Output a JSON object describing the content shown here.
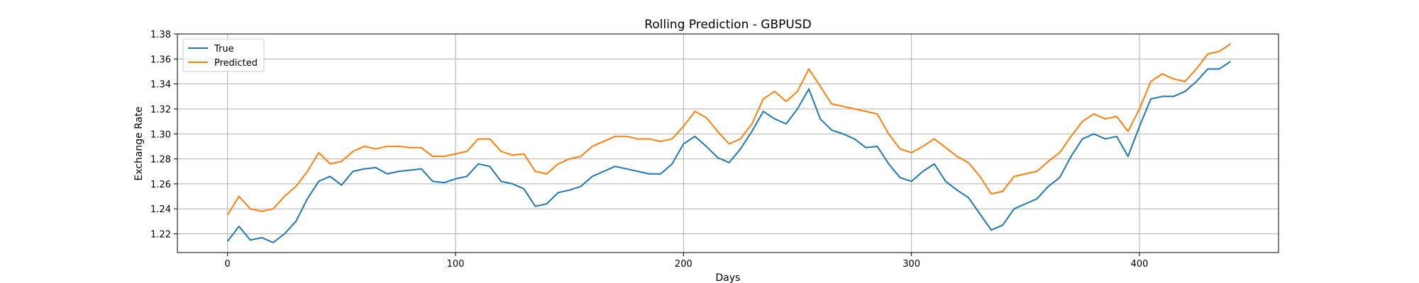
{
  "chart_data": {
    "type": "line",
    "title": "Rolling Prediction - GBPUSD",
    "xlabel": "Days",
    "ylabel": "Exchange Rate",
    "xlim": [
      -22,
      461
    ],
    "ylim": [
      1.205,
      1.38
    ],
    "x_ticks": [
      0,
      100,
      200,
      300,
      400
    ],
    "y_ticks": [
      1.22,
      1.24,
      1.26,
      1.28,
      1.3,
      1.32,
      1.34,
      1.36,
      1.38
    ],
    "grid": true,
    "legend_position": "upper-left",
    "series": [
      {
        "name": "True",
        "color": "#1f77b4",
        "x": [
          0,
          5,
          10,
          15,
          20,
          25,
          30,
          35,
          40,
          45,
          50,
          55,
          60,
          65,
          70,
          75,
          80,
          85,
          90,
          95,
          100,
          105,
          110,
          115,
          120,
          125,
          130,
          135,
          140,
          145,
          150,
          155,
          160,
          165,
          170,
          175,
          180,
          185,
          190,
          195,
          200,
          205,
          210,
          215,
          220,
          225,
          230,
          235,
          240,
          245,
          250,
          255,
          260,
          265,
          270,
          275,
          280,
          285,
          290,
          295,
          300,
          305,
          310,
          315,
          320,
          325,
          330,
          335,
          340,
          345,
          350,
          355,
          360,
          365,
          370,
          375,
          380,
          385,
          390,
          395,
          400,
          405,
          410,
          415,
          420,
          425,
          430,
          435,
          440
        ],
        "values": [
          1.214,
          1.226,
          1.215,
          1.217,
          1.213,
          1.22,
          1.23,
          1.248,
          1.262,
          1.266,
          1.259,
          1.27,
          1.272,
          1.273,
          1.268,
          1.27,
          1.271,
          1.272,
          1.262,
          1.261,
          1.264,
          1.266,
          1.276,
          1.274,
          1.262,
          1.26,
          1.256,
          1.242,
          1.244,
          1.253,
          1.255,
          1.258,
          1.266,
          1.27,
          1.274,
          1.272,
          1.27,
          1.268,
          1.268,
          1.276,
          1.292,
          1.298,
          1.29,
          1.281,
          1.277,
          1.288,
          1.302,
          1.318,
          1.312,
          1.308,
          1.32,
          1.336,
          1.312,
          1.303,
          1.3,
          1.296,
          1.289,
          1.29,
          1.276,
          1.265,
          1.262,
          1.27,
          1.276,
          1.262,
          1.255,
          1.249,
          1.236,
          1.223,
          1.227,
          1.24,
          1.244,
          1.248,
          1.258,
          1.265,
          1.282,
          1.296,
          1.3,
          1.296,
          1.298,
          1.282,
          1.306,
          1.328,
          1.33,
          1.33,
          1.334,
          1.342,
          1.352,
          1.352,
          1.358
        ]
      },
      {
        "name": "Predicted",
        "color": "#ff7f0e",
        "x": [
          0,
          5,
          10,
          15,
          20,
          25,
          30,
          35,
          40,
          45,
          50,
          55,
          60,
          65,
          70,
          75,
          80,
          85,
          90,
          95,
          100,
          105,
          110,
          115,
          120,
          125,
          130,
          135,
          140,
          145,
          150,
          155,
          160,
          165,
          170,
          175,
          180,
          185,
          190,
          195,
          200,
          205,
          210,
          215,
          220,
          225,
          230,
          235,
          240,
          245,
          250,
          255,
          260,
          265,
          270,
          275,
          280,
          285,
          290,
          295,
          300,
          305,
          310,
          315,
          320,
          325,
          330,
          335,
          340,
          345,
          350,
          355,
          360,
          365,
          370,
          375,
          380,
          385,
          390,
          395,
          400,
          405,
          410,
          415,
          420,
          425,
          430,
          435,
          440
        ],
        "values": [
          1.235,
          1.25,
          1.24,
          1.238,
          1.24,
          1.25,
          1.258,
          1.27,
          1.285,
          1.276,
          1.278,
          1.286,
          1.29,
          1.288,
          1.29,
          1.29,
          1.289,
          1.289,
          1.282,
          1.282,
          1.284,
          1.286,
          1.296,
          1.296,
          1.286,
          1.283,
          1.284,
          1.27,
          1.268,
          1.276,
          1.28,
          1.282,
          1.29,
          1.294,
          1.298,
          1.298,
          1.296,
          1.296,
          1.294,
          1.296,
          1.306,
          1.318,
          1.313,
          1.302,
          1.292,
          1.296,
          1.308,
          1.328,
          1.334,
          1.326,
          1.334,
          1.352,
          1.338,
          1.324,
          1.322,
          1.32,
          1.318,
          1.316,
          1.3,
          1.288,
          1.285,
          1.29,
          1.296,
          1.289,
          1.282,
          1.277,
          1.266,
          1.252,
          1.254,
          1.266,
          1.268,
          1.27,
          1.278,
          1.285,
          1.298,
          1.31,
          1.316,
          1.312,
          1.314,
          1.302,
          1.32,
          1.342,
          1.348,
          1.344,
          1.342,
          1.352,
          1.364,
          1.366,
          1.372
        ]
      }
    ]
  }
}
